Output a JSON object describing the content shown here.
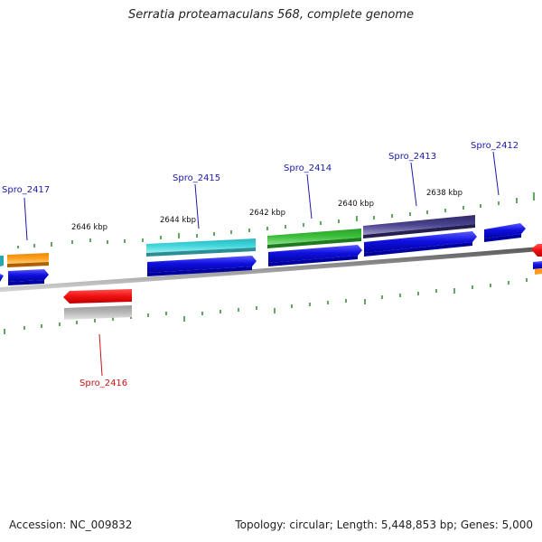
{
  "title": "Serratia proteamaculans 568, complete genome",
  "footer": {
    "accession": "Accession: NC_009832",
    "summary": "Topology: circular; Length: 5,448,853 bp; Genes: 5,000"
  },
  "map": {
    "kbp_labels": [
      "2646 kbp",
      "2644 kbp",
      "2642 kbp",
      "2640 kbp",
      "2638 kbp"
    ],
    "gene_labels": [
      {
        "name": "Spro_2417",
        "strand": "plus"
      },
      {
        "name": "Spro_2415",
        "strand": "plus"
      },
      {
        "name": "Spro_2414",
        "strand": "plus"
      },
      {
        "name": "Spro_2413",
        "strand": "plus"
      },
      {
        "name": "Spro_2412",
        "strand": "plus"
      },
      {
        "name": "Spro_2416",
        "strand": "minus"
      }
    ],
    "colors": {
      "plus_label": "#1a1aa8",
      "minus_label": "#cc1111",
      "cds": "#1010e0",
      "tick": "#2a8a2a",
      "backbone": "#7a7a7a"
    }
  }
}
